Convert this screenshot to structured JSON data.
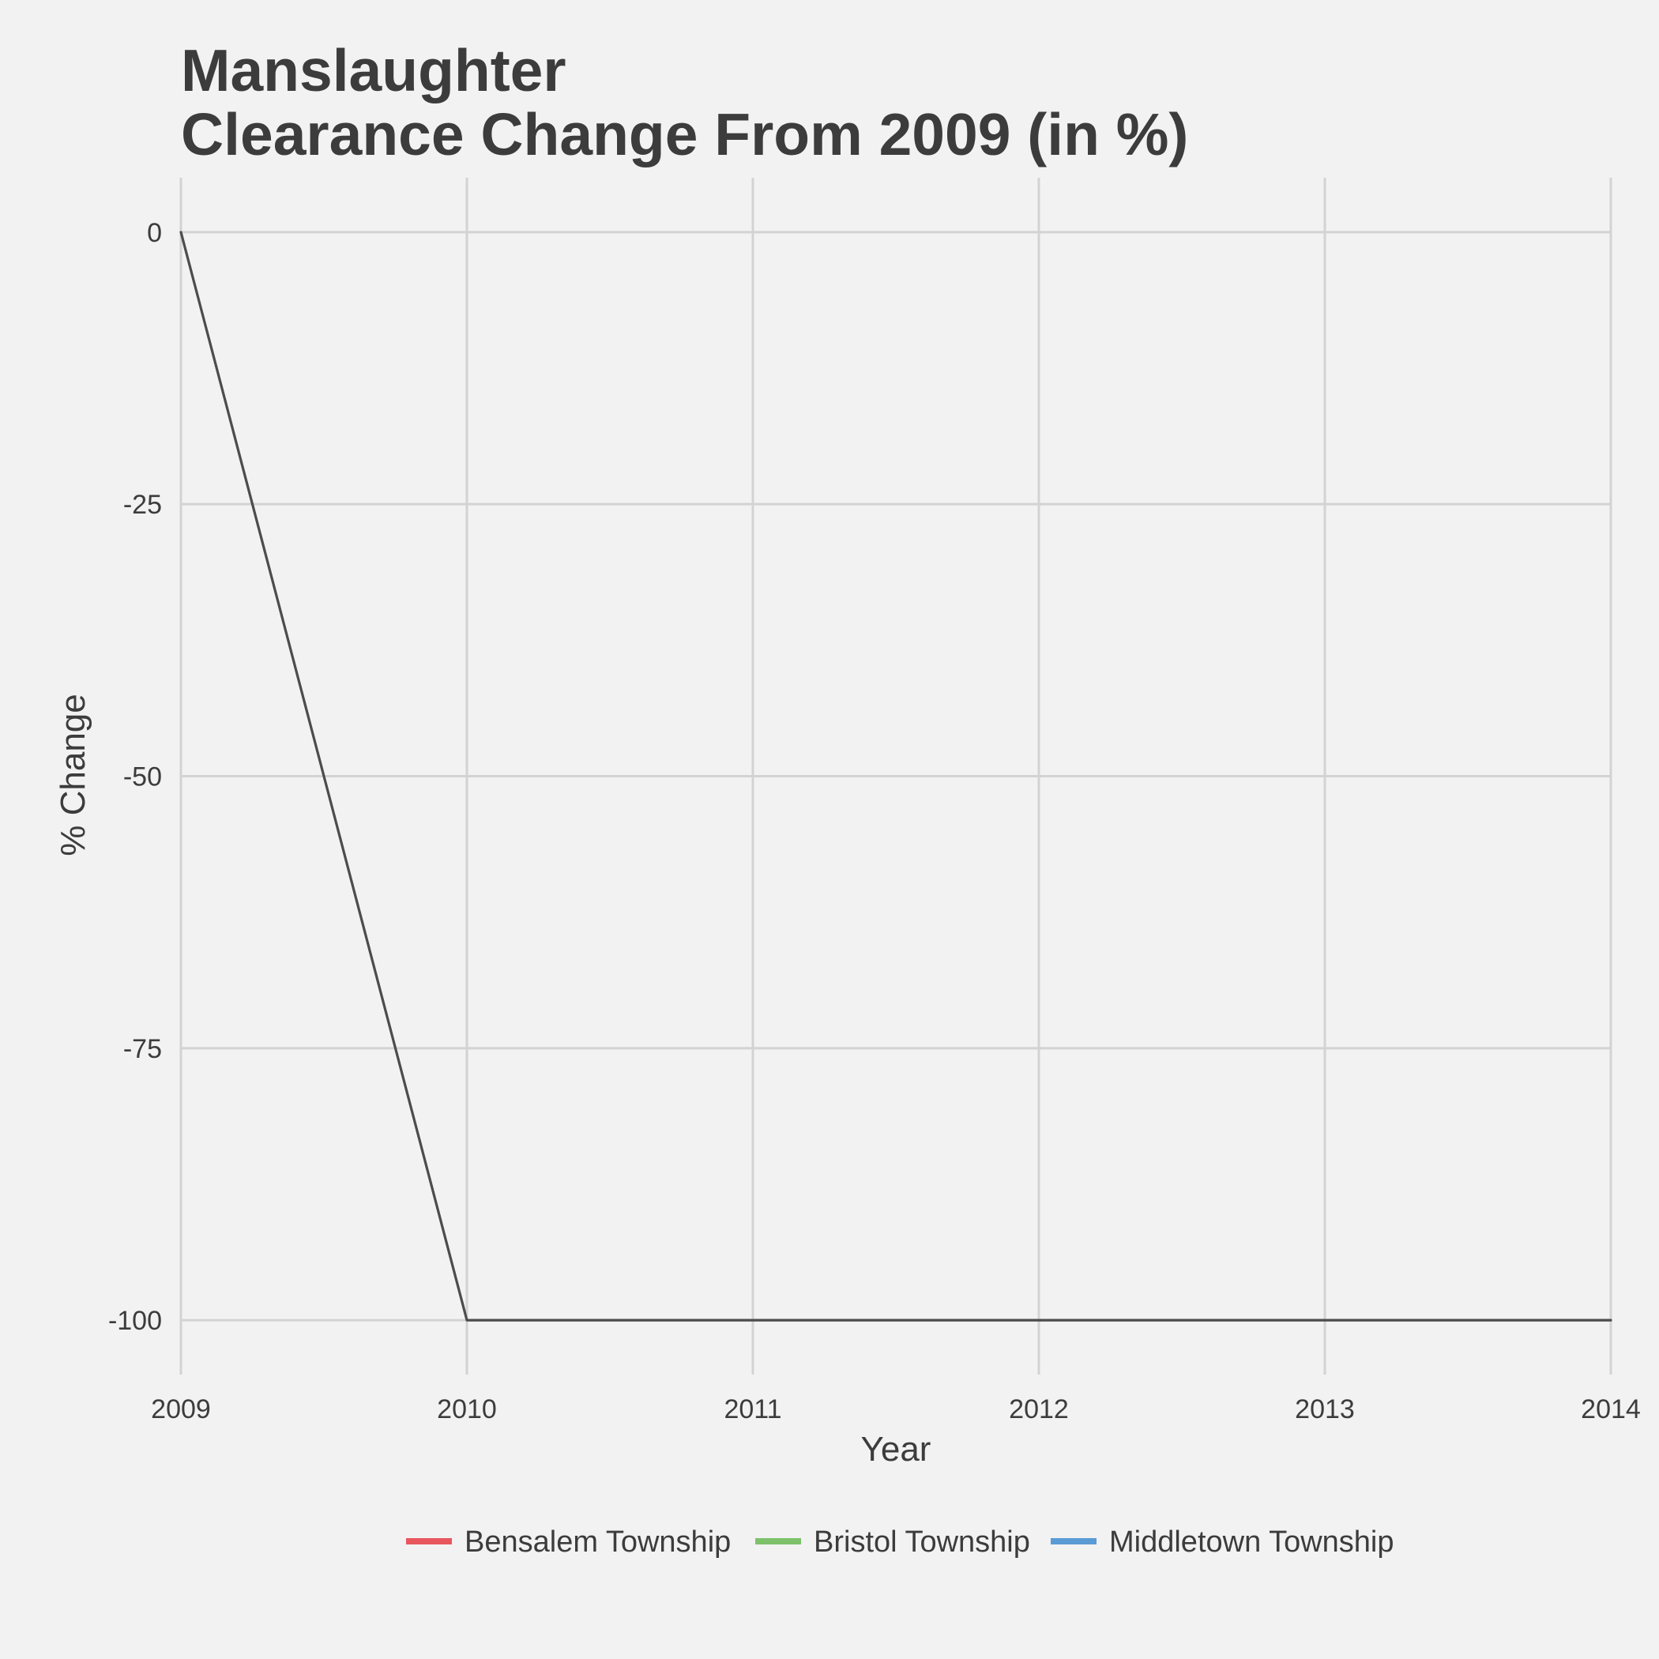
{
  "chart_data": {
    "type": "line",
    "title": "Manslaughter",
    "subtitle": "Clearance Change From 2009 (in %)",
    "xlabel": "Year",
    "ylabel": "% Change",
    "x": [
      2009,
      2010,
      2011,
      2012,
      2013,
      2014
    ],
    "x_ticks": [
      "2009",
      "2010",
      "2011",
      "2012",
      "2013",
      "2014"
    ],
    "y_ticks": [
      "0",
      "-25",
      "-50",
      "-75",
      "-100"
    ],
    "y_tick_values": [
      0,
      -25,
      -50,
      -75,
      -100
    ],
    "xlim": [
      2009,
      2014
    ],
    "ylim": [
      -105,
      5
    ],
    "grid": true,
    "legend_position": "bottom",
    "series": [
      {
        "name": "Bensalem Township",
        "color": "#e8575d",
        "values": [
          0,
          -100,
          -100,
          -100,
          -100,
          -100
        ]
      },
      {
        "name": "Bristol Township",
        "color": "#7dc26b",
        "values": [
          0,
          -100,
          -100,
          -100,
          -100,
          -100
        ]
      },
      {
        "name": "Middletown Township",
        "color": "#5b9bd5",
        "values": [
          0,
          -100,
          -100,
          -100,
          -100,
          -100
        ]
      }
    ],
    "drawn_line_color": "#4d4d4d"
  }
}
